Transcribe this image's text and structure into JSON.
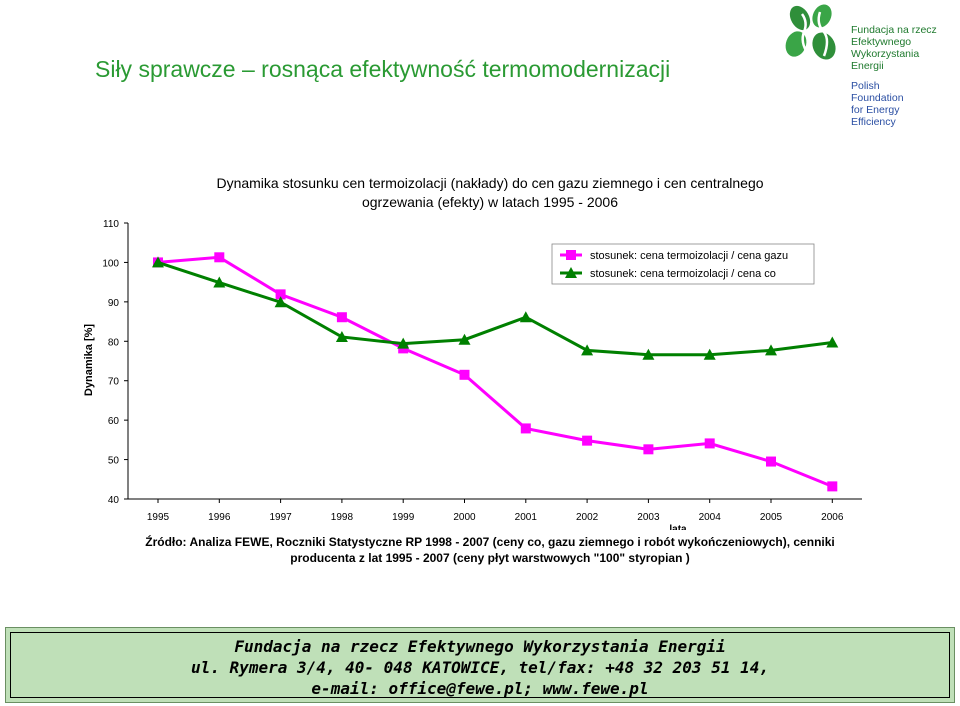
{
  "slide": {
    "title": "Siły sprawcze – rosnąca efektywność termomodernizacji"
  },
  "logo": {
    "text_pl": "Fundacja na rzecz\nEfektywnego\nWykorzystania\nEnergii",
    "text_en": "Polish\nFoundation\nfor Energy\nEfficiency"
  },
  "colors": {
    "title": "#2a9a33",
    "series_gas": "#ff00ff",
    "series_co": "#008000",
    "footer_bg": "#bfe0b8"
  },
  "chart_data": {
    "type": "line",
    "title": "Dynamika stosunku cen termoizolacji (nakłady) do cen gazu ziemnego i cen centralnego\nogrzewania (efekty) w latach 1995 - 2006",
    "xlabel": "lata",
    "ylabel": "Dynamika [%]",
    "ylim": [
      40,
      110
    ],
    "yticks": [
      "40",
      "50",
      "60",
      "70",
      "80",
      "90",
      "100",
      "110"
    ],
    "categories": [
      "1995",
      "1996",
      "1997",
      "1998",
      "1999",
      "2000",
      "2001",
      "2002",
      "2003",
      "2004",
      "2005",
      "2006"
    ],
    "legend_position": "top-right",
    "grid": false,
    "series": [
      {
        "name": "stosunek: cena termoizolacji / cena gazu",
        "marker": "square",
        "values": [
          100,
          101.3,
          91.9,
          86.1,
          78.2,
          71.5,
          57.9,
          54.8,
          52.6,
          54.1,
          49.5,
          43.2
        ]
      },
      {
        "name": "stosunek: cena termoizolacji / cena co",
        "marker": "triangle",
        "values": [
          100,
          94.9,
          89.9,
          81.1,
          79.4,
          80.4,
          86.1,
          77.7,
          76.6,
          76.6,
          77.7,
          79.7
        ]
      }
    ]
  },
  "source_note": "Źródło: Analiza FEWE, Roczniki Statystyczne RP 1998 - 2007 (ceny co, gazu ziemnego i robót wykończeniowych), cenniki\nproducenta z lat 1995 - 2007 (ceny płyt warstwowych \"100\" styropian )",
  "footer": {
    "line1": "Fundacja na rzecz Efektywnego Wykorzystania Energii",
    "line2": "ul. Rymera 3/4, 40- 048 KATOWICE, tel/fax: +48 32 203 51 14,",
    "line3": "e-mail: office@fewe.pl; www.fewe.pl"
  }
}
